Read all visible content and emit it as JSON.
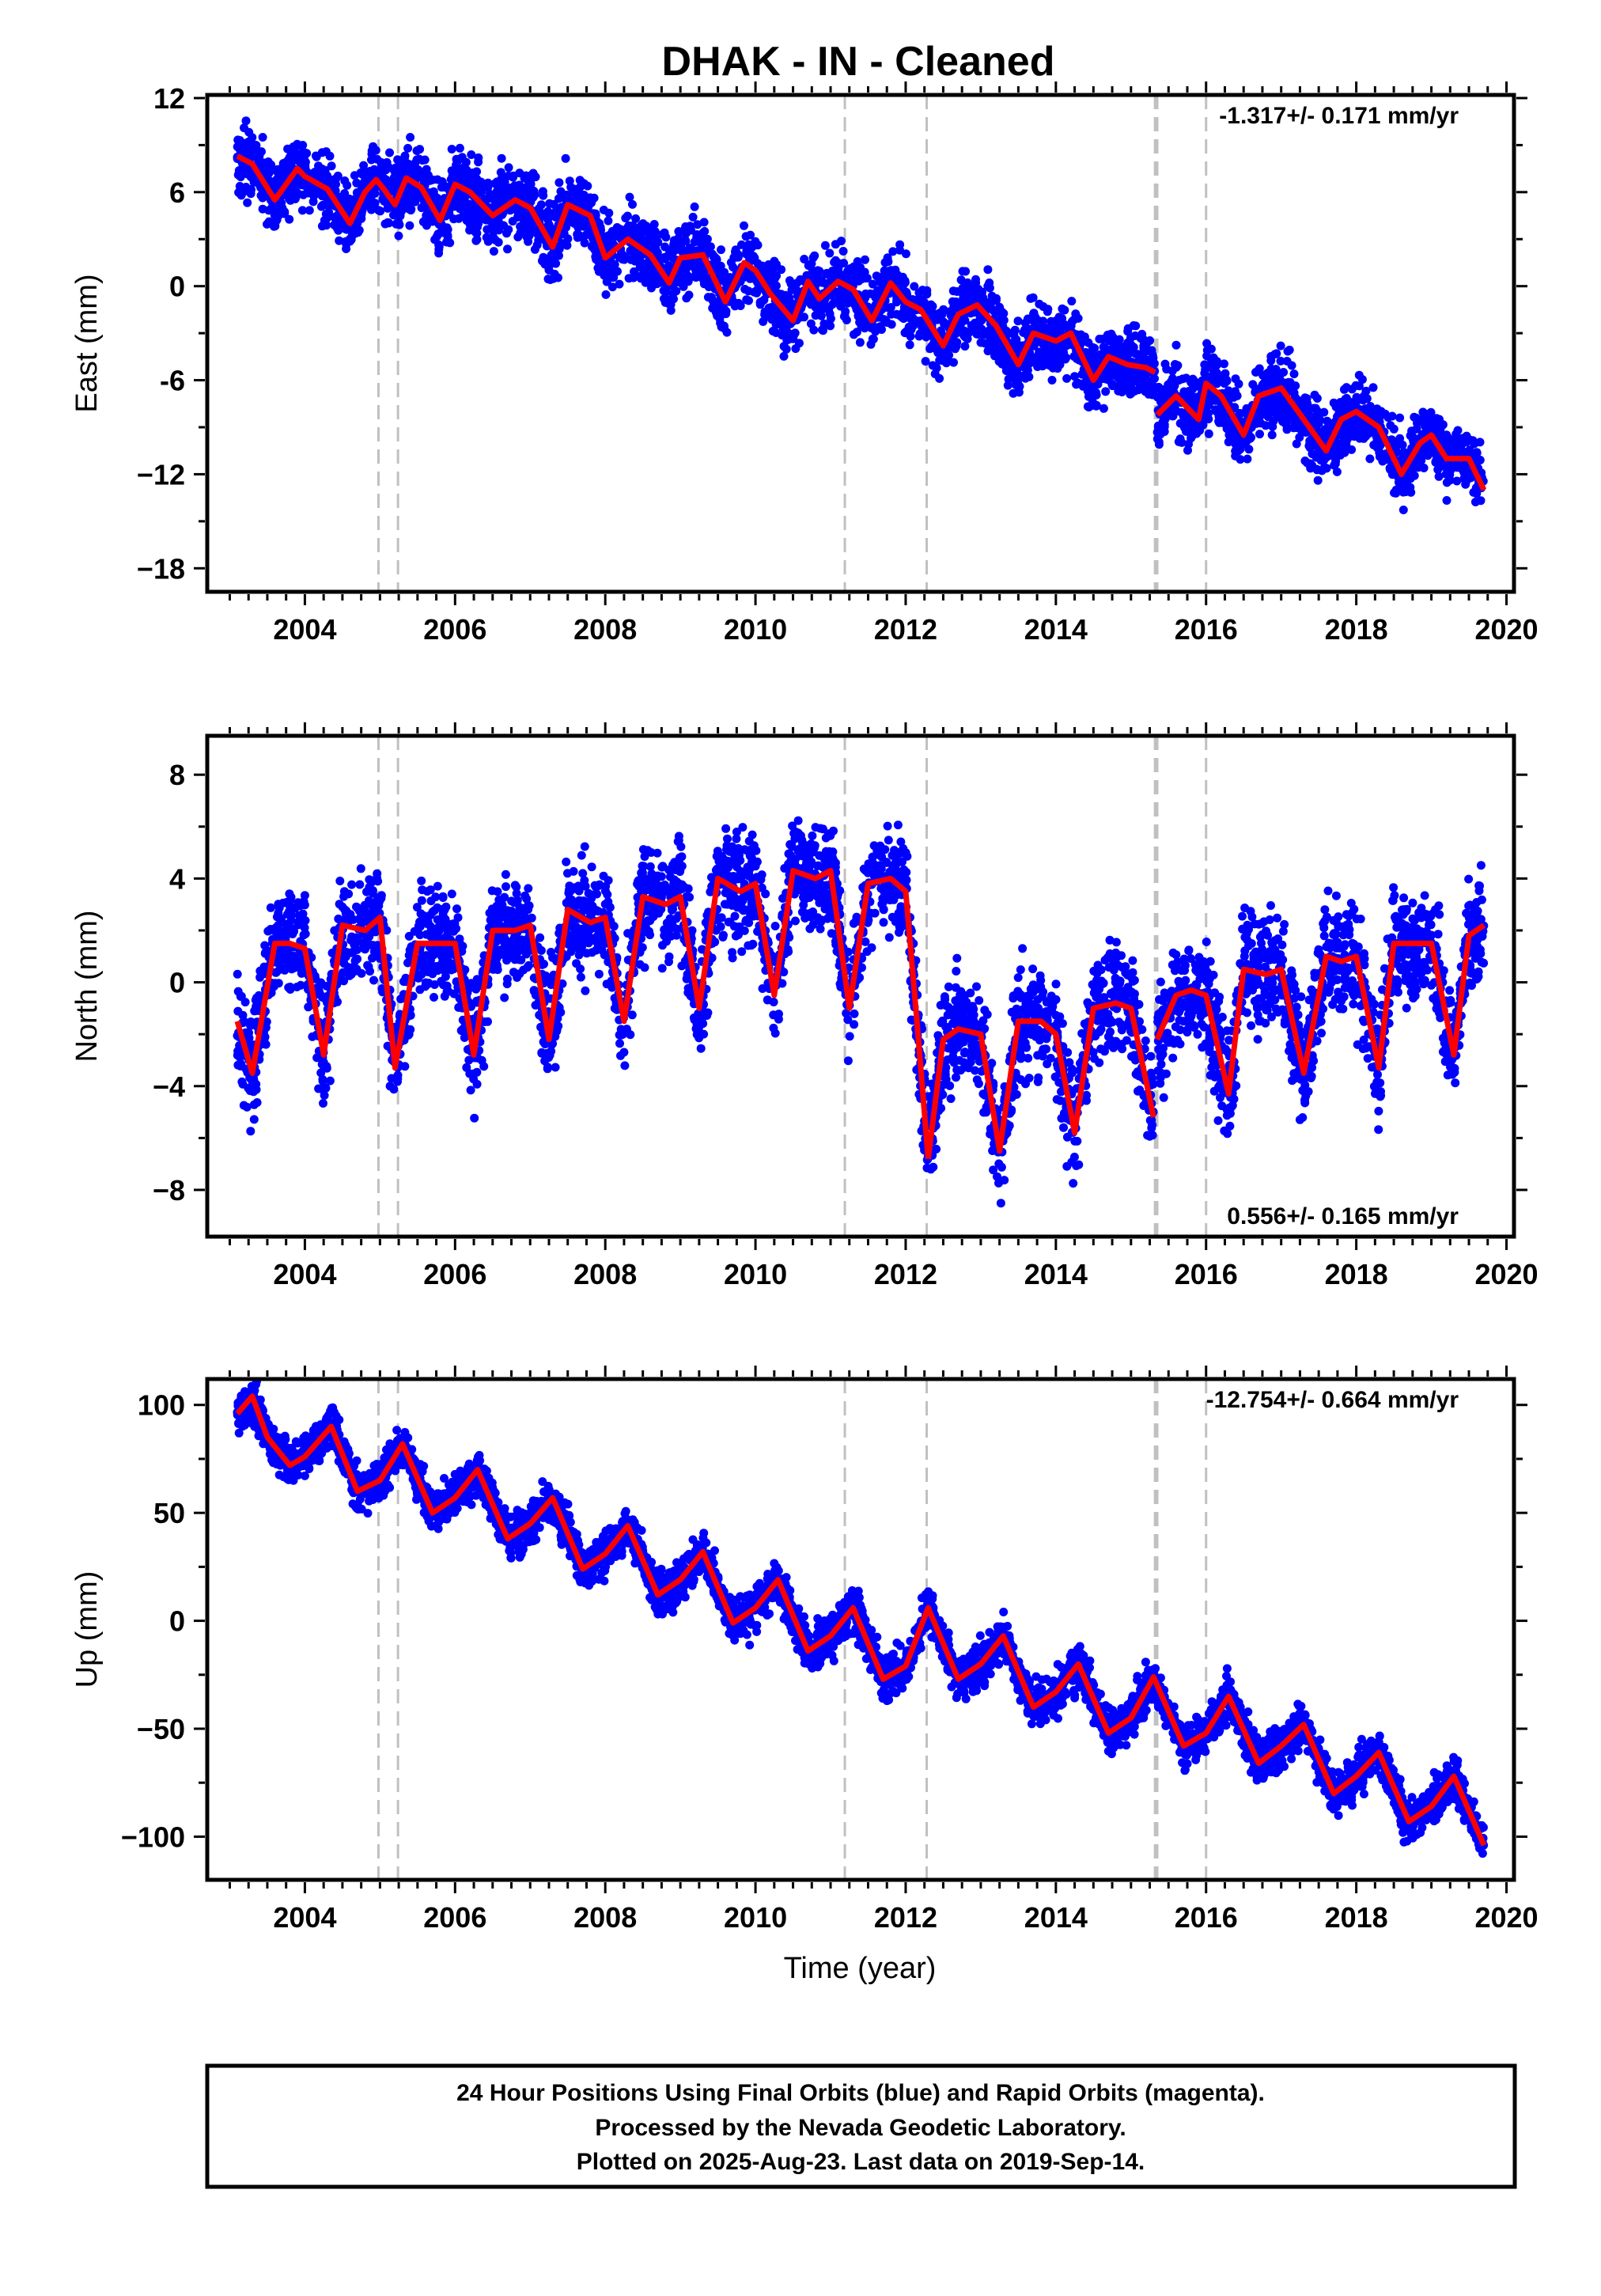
{
  "figure": {
    "title": "DHAK  - IN - Cleaned",
    "xlabel": "Time (year)",
    "footer_lines": [
      "24 Hour Positions Using Final Orbits (blue) and Rapid Orbits (magenta).",
      "Processed by the Nevada Geodetic Laboratory.",
      "Plotted on 2025-Aug-23. Last data on 2019-Sep-14."
    ],
    "colors": {
      "points": "#0000ff",
      "model": "#ff0000",
      "events": "#c0c0c0",
      "frame": "#000000"
    }
  },
  "chart_data": [
    {
      "type": "scatter",
      "name": "east",
      "ylabel": "East (mm)",
      "rate": "-1.317+/- 0.171 mm/yr",
      "rate_position": "top-right",
      "xlim": [
        2002.7,
        2020.1
      ],
      "ylim": [
        -19.5,
        12.2
      ],
      "xticks": [
        2004,
        2006,
        2008,
        2010,
        2012,
        2014,
        2016,
        2018,
        2020
      ],
      "yticks": [
        12,
        6,
        0,
        -6,
        -12,
        -18
      ],
      "ytick_labels": [
        "12",
        "6",
        "0",
        "-6",
        "−12",
        "−18"
      ],
      "event_lines": [
        2004.98,
        2005.24,
        2011.19,
        2012.28,
        2015.32,
        2015.35,
        2016.0
      ],
      "model_segments": [
        {
          "x": [
            2003.1,
            2003.3,
            2003.6,
            2003.9,
            2004.0,
            2004.3,
            2004.6,
            2004.8,
            2004.95,
            2005.05,
            2005.2,
            2005.35,
            2005.55,
            2005.8,
            2006.0,
            2006.2,
            2006.5,
            2006.8,
            2007.0,
            2007.3,
            2007.5,
            2007.8,
            2008.0,
            2008.3,
            2008.6,
            2008.85,
            2009.0,
            2009.3,
            2009.6,
            2009.85,
            2010.0,
            2010.2,
            2010.5,
            2010.7,
            2010.85,
            2011.1,
            2011.3,
            2011.55,
            2011.8,
            2012.0,
            2012.2,
            2012.5,
            2012.7,
            2012.95,
            2013.2,
            2013.5,
            2013.7,
            2014.0,
            2014.2,
            2014.5,
            2014.7,
            2014.95,
            2015.2,
            2015.32
          ],
          "y": [
            8.3,
            7.8,
            5.5,
            7.5,
            7.0,
            6.2,
            4.0,
            6.0,
            6.8,
            6.2,
            5.2,
            6.9,
            6.3,
            4.2,
            6.5,
            6.0,
            4.5,
            5.5,
            5.0,
            2.5,
            5.2,
            4.5,
            1.8,
            3.0,
            2.0,
            0.2,
            1.8,
            2.0,
            -1.0,
            1.5,
            1.0,
            -0.5,
            -2.2,
            0.3,
            -0.8,
            0.3,
            -0.2,
            -2.2,
            0.2,
            -1.0,
            -1.5,
            -3.8,
            -1.8,
            -1.2,
            -2.5,
            -5.0,
            -3.0,
            -3.5,
            -3.0,
            -6.0,
            -4.5,
            -5.0,
            -5.2,
            -5.5
          ]
        },
        {
          "x": [
            2015.35,
            2015.6,
            2015.9,
            2016.0,
            2016.2,
            2016.5,
            2016.7,
            2017.0,
            2017.3,
            2017.6,
            2017.8,
            2018.0,
            2018.3,
            2018.6,
            2018.85,
            2019.0,
            2019.2,
            2019.5,
            2019.7
          ],
          "y": [
            -8.2,
            -7.0,
            -8.5,
            -6.2,
            -7.0,
            -9.5,
            -7.0,
            -6.5,
            -8.5,
            -10.5,
            -8.5,
            -8.0,
            -9.0,
            -12.0,
            -10.0,
            -9.5,
            -11.0,
            -11.0,
            -13.0
          ]
        }
      ],
      "point_spread": 1.6
    },
    {
      "type": "scatter",
      "name": "north",
      "ylabel": "North (mm)",
      "rate": "0.556+/- 0.165 mm/yr",
      "rate_position": "bottom-right",
      "xlim": [
        2002.7,
        2020.1
      ],
      "ylim": [
        -9.8,
        9.5
      ],
      "xticks": [
        2004,
        2006,
        2008,
        2010,
        2012,
        2014,
        2016,
        2018,
        2020
      ],
      "yticks": [
        8,
        4,
        0,
        -4,
        -8
      ],
      "ytick_labels": [
        "8",
        "4",
        "0",
        "−4",
        "−8"
      ],
      "event_lines": [
        2004.98,
        2005.24,
        2011.19,
        2012.28,
        2015.32,
        2015.35,
        2016.0
      ],
      "model_segments": [
        {
          "x": [
            2003.1,
            2003.3,
            2003.6,
            2003.8,
            2004.0,
            2004.25,
            2004.5,
            2004.8,
            2005.0,
            2005.2,
            2005.5,
            2005.8,
            2006.0,
            2006.25,
            2006.5,
            2006.8,
            2007.0,
            2007.25,
            2007.5,
            2007.8,
            2008.0,
            2008.25,
            2008.5,
            2008.8,
            2009.0,
            2009.25,
            2009.5,
            2009.8,
            2010.0,
            2010.25,
            2010.5,
            2010.8,
            2011.0,
            2011.25,
            2011.5,
            2011.8,
            2012.0,
            2012.15,
            2012.3
          ],
          "y": [
            -1.5,
            -3.5,
            1.5,
            1.5,
            1.3,
            -2.8,
            2.2,
            2.0,
            2.5,
            -3.3,
            1.5,
            1.5,
            1.5,
            -2.8,
            2.0,
            2.0,
            2.2,
            -2.2,
            2.8,
            2.3,
            2.5,
            -1.5,
            3.3,
            3.0,
            3.3,
            -1.0,
            4.0,
            3.5,
            3.8,
            -0.5,
            4.3,
            4.0,
            4.3,
            -1.0,
            3.8,
            4.0,
            3.5,
            -1.5,
            -6.8
          ]
        },
        {
          "x": [
            2012.3,
            2012.5,
            2012.7,
            2013.0,
            2013.25,
            2013.5,
            2013.8,
            2014.0,
            2014.25,
            2014.5,
            2014.8,
            2015.0,
            2015.3
          ],
          "y": [
            -6.8,
            -2.2,
            -1.8,
            -2.0,
            -6.5,
            -1.5,
            -1.5,
            -2.0,
            -5.8,
            -1.0,
            -0.8,
            -1.0,
            -5.2
          ]
        },
        {
          "x": [
            2015.35,
            2015.6,
            2015.8,
            2016.0,
            2016.3,
            2016.5,
            2016.8,
            2017.0,
            2017.3,
            2017.6,
            2017.8,
            2018.0,
            2018.3,
            2018.5,
            2018.8,
            2019.0,
            2019.3,
            2019.5,
            2019.7
          ],
          "y": [
            -2.2,
            -0.5,
            -0.3,
            -0.5,
            -4.3,
            0.5,
            0.3,
            0.5,
            -3.5,
            1.0,
            0.8,
            1.0,
            -3.3,
            1.5,
            1.5,
            1.5,
            -2.8,
            1.8,
            2.2
          ]
        }
      ],
      "point_spread": 1.5
    },
    {
      "type": "scatter",
      "name": "up",
      "ylabel": "Up (mm)",
      "rate": "-12.754+/- 0.664 mm/yr",
      "rate_position": "top-right",
      "xlim": [
        2002.7,
        2020.1
      ],
      "ylim": [
        -120,
        112
      ],
      "xticks": [
        2004,
        2006,
        2008,
        2010,
        2012,
        2014,
        2016,
        2018,
        2020
      ],
      "yticks": [
        100,
        50,
        0,
        -50,
        -100
      ],
      "ytick_labels": [
        "100",
        "50",
        "0",
        "−50",
        "−100"
      ],
      "event_lines": [
        2004.98,
        2005.24,
        2011.19,
        2012.28,
        2015.32,
        2015.35,
        2016.0
      ],
      "model_segments": [
        {
          "x": [
            2003.1,
            2003.3,
            2003.5,
            2003.8,
            2004.0,
            2004.35,
            2004.7,
            2005.0,
            2005.3,
            2005.7,
            2006.0,
            2006.3,
            2006.7,
            2007.0,
            2007.3,
            2007.7,
            2008.0,
            2008.3,
            2008.7,
            2009.0,
            2009.3,
            2009.7,
            2010.0,
            2010.3,
            2010.7,
            2011.0,
            2011.3,
            2011.7,
            2012.0,
            2012.3,
            2012.7,
            2013.0,
            2013.3,
            2013.7,
            2014.0,
            2014.3,
            2014.7,
            2015.0,
            2015.3,
            2015.7,
            2016.0,
            2016.3,
            2016.7,
            2017.0,
            2017.3,
            2017.7,
            2018.0,
            2018.3,
            2018.7,
            2019.0,
            2019.3,
            2019.7
          ],
          "y": [
            96,
            104,
            85,
            72,
            76,
            90,
            60,
            65,
            82,
            50,
            57,
            70,
            38,
            45,
            57,
            24,
            31,
            44,
            12,
            19,
            32,
            -1,
            6,
            19,
            -14,
            -7,
            6,
            -27,
            -21,
            6,
            -27,
            -20,
            -7,
            -40,
            -33,
            -20,
            -52,
            -45,
            -26,
            -58,
            -52,
            -35,
            -66,
            -58,
            -48,
            -80,
            -72,
            -61,
            -93,
            -86,
            -72,
            -104
          ]
        }
      ],
      "point_spread": 7.0
    }
  ]
}
